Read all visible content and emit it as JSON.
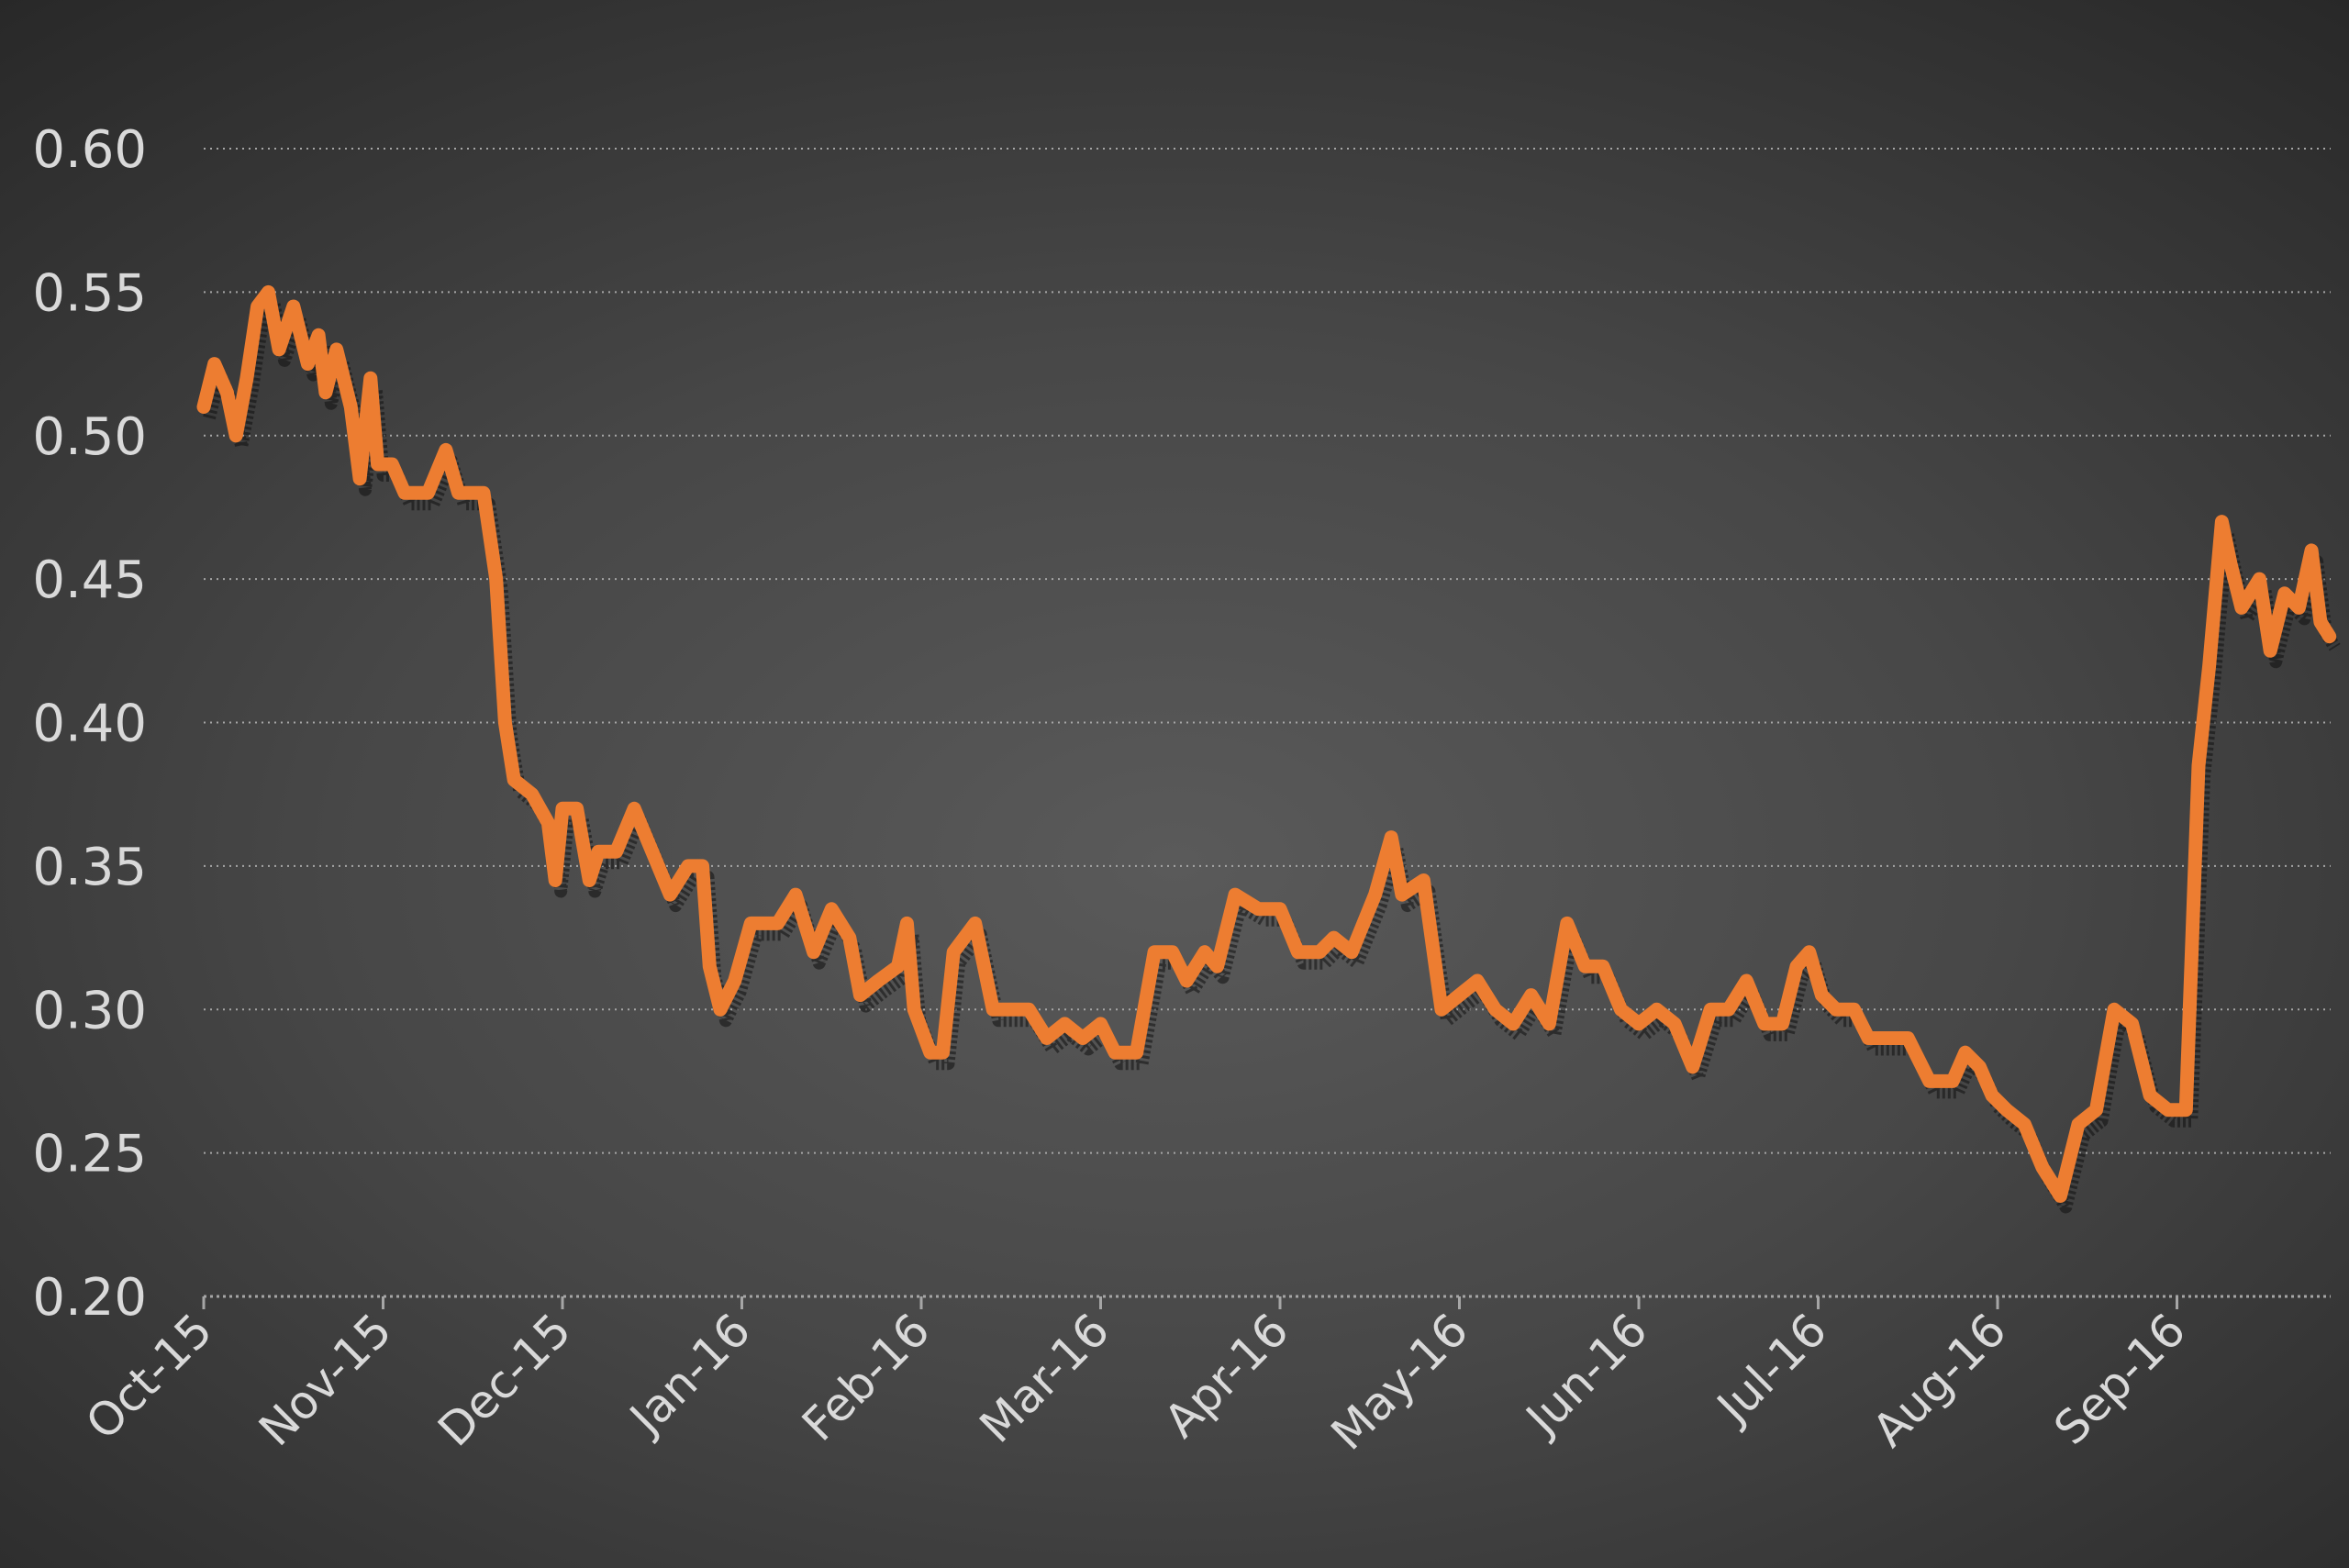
{
  "chart_data": {
    "type": "line",
    "title": "",
    "xlabel": "",
    "ylabel": "",
    "ylim": [
      0.2,
      0.6
    ],
    "yticks": [
      "0.20",
      "0.25",
      "0.30",
      "0.35",
      "0.40",
      "0.45",
      "0.50",
      "0.55",
      "0.60"
    ],
    "categories": [
      "Oct-15",
      "Nov-15",
      "Dec-15",
      "Jan-16",
      "Feb-16",
      "Mar-16",
      "Apr-16",
      "May-16",
      "Jun-16",
      "Jul-16",
      "Aug-16",
      "Sep-16"
    ],
    "grid": true,
    "legend": "none",
    "line_color": "#ed7d31",
    "series": [
      {
        "points": [
          [
            0.0,
            0.51
          ],
          [
            0.06,
            0.525
          ],
          [
            0.13,
            0.515
          ],
          [
            0.18,
            0.5
          ],
          [
            0.24,
            0.52
          ],
          [
            0.3,
            0.545
          ],
          [
            0.36,
            0.55
          ],
          [
            0.42,
            0.53
          ],
          [
            0.5,
            0.545
          ],
          [
            0.58,
            0.525
          ],
          [
            0.64,
            0.535
          ],
          [
            0.68,
            0.515
          ],
          [
            0.74,
            0.53
          ],
          [
            0.82,
            0.51
          ],
          [
            0.87,
            0.485
          ],
          [
            0.93,
            0.52
          ],
          [
            0.97,
            0.49
          ],
          [
            1.05,
            0.49
          ],
          [
            1.12,
            0.48
          ],
          [
            1.25,
            0.48
          ],
          [
            1.35,
            0.495
          ],
          [
            1.42,
            0.48
          ],
          [
            1.56,
            0.48
          ],
          [
            1.63,
            0.45
          ],
          [
            1.68,
            0.4
          ],
          [
            1.73,
            0.38
          ],
          [
            1.83,
            0.375
          ],
          [
            1.92,
            0.365
          ],
          [
            1.96,
            0.345
          ],
          [
            2.0,
            0.37
          ],
          [
            2.08,
            0.37
          ],
          [
            2.15,
            0.345
          ],
          [
            2.2,
            0.355
          ],
          [
            2.3,
            0.355
          ],
          [
            2.4,
            0.37
          ],
          [
            2.5,
            0.355
          ],
          [
            2.6,
            0.34
          ],
          [
            2.7,
            0.35
          ],
          [
            2.78,
            0.35
          ],
          [
            2.82,
            0.315
          ],
          [
            2.88,
            0.3
          ],
          [
            2.96,
            0.31
          ],
          [
            3.05,
            0.33
          ],
          [
            3.2,
            0.33
          ],
          [
            3.3,
            0.34
          ],
          [
            3.4,
            0.32
          ],
          [
            3.5,
            0.335
          ],
          [
            3.6,
            0.325
          ],
          [
            3.66,
            0.305
          ],
          [
            3.76,
            0.31
          ],
          [
            3.87,
            0.315
          ],
          [
            3.92,
            0.33
          ],
          [
            3.96,
            0.3
          ],
          [
            4.05,
            0.285
          ],
          [
            4.12,
            0.285
          ],
          [
            4.18,
            0.32
          ],
          [
            4.3,
            0.33
          ],
          [
            4.4,
            0.3
          ],
          [
            4.5,
            0.3
          ],
          [
            4.6,
            0.3
          ],
          [
            4.7,
            0.29
          ],
          [
            4.8,
            0.295
          ],
          [
            4.9,
            0.29
          ],
          [
            5.0,
            0.295
          ],
          [
            5.08,
            0.285
          ],
          [
            5.2,
            0.285
          ],
          [
            5.3,
            0.32
          ],
          [
            5.4,
            0.32
          ],
          [
            5.48,
            0.31
          ],
          [
            5.58,
            0.32
          ],
          [
            5.65,
            0.315
          ],
          [
            5.75,
            0.34
          ],
          [
            5.88,
            0.335
          ],
          [
            6.0,
            0.335
          ],
          [
            6.1,
            0.32
          ],
          [
            6.22,
            0.32
          ],
          [
            6.3,
            0.325
          ],
          [
            6.4,
            0.32
          ],
          [
            6.53,
            0.34
          ],
          [
            6.62,
            0.36
          ],
          [
            6.68,
            0.34
          ],
          [
            6.8,
            0.345
          ],
          [
            6.9,
            0.3
          ],
          [
            7.0,
            0.305
          ],
          [
            7.1,
            0.31
          ],
          [
            7.2,
            0.3
          ],
          [
            7.3,
            0.295
          ],
          [
            7.4,
            0.305
          ],
          [
            7.5,
            0.295
          ],
          [
            7.6,
            0.33
          ],
          [
            7.7,
            0.315
          ],
          [
            7.8,
            0.315
          ],
          [
            7.9,
            0.3
          ],
          [
            8.0,
            0.295
          ],
          [
            8.1,
            0.3
          ],
          [
            8.2,
            0.295
          ],
          [
            8.3,
            0.28
          ],
          [
            8.4,
            0.3
          ],
          [
            8.5,
            0.3
          ],
          [
            8.6,
            0.31
          ],
          [
            8.7,
            0.295
          ],
          [
            8.8,
            0.295
          ],
          [
            8.88,
            0.315
          ],
          [
            8.95,
            0.32
          ],
          [
            9.02,
            0.305
          ],
          [
            9.1,
            0.3
          ],
          [
            9.2,
            0.3
          ],
          [
            9.28,
            0.29
          ],
          [
            9.4,
            0.29
          ],
          [
            9.5,
            0.29
          ],
          [
            9.62,
            0.275
          ],
          [
            9.75,
            0.275
          ],
          [
            9.82,
            0.285
          ],
          [
            9.9,
            0.28
          ],
          [
            9.97,
            0.27
          ],
          [
            10.05,
            0.265
          ],
          [
            10.15,
            0.26
          ],
          [
            10.25,
            0.245
          ],
          [
            10.35,
            0.235
          ],
          [
            10.45,
            0.26
          ],
          [
            10.55,
            0.265
          ],
          [
            10.65,
            0.3
          ],
          [
            10.75,
            0.295
          ],
          [
            10.85,
            0.27
          ],
          [
            10.95,
            0.265
          ],
          [
            11.05,
            0.265
          ],
          [
            11.12,
            0.385
          ],
          [
            11.18,
            0.42
          ],
          [
            11.25,
            0.47
          ],
          [
            11.3,
            0.455
          ],
          [
            11.36,
            0.44
          ],
          [
            11.46,
            0.45
          ],
          [
            11.52,
            0.425
          ],
          [
            11.6,
            0.445
          ],
          [
            11.68,
            0.44
          ],
          [
            11.75,
            0.46
          ],
          [
            11.8,
            0.435
          ],
          [
            11.85,
            0.43
          ]
        ]
      }
    ]
  }
}
